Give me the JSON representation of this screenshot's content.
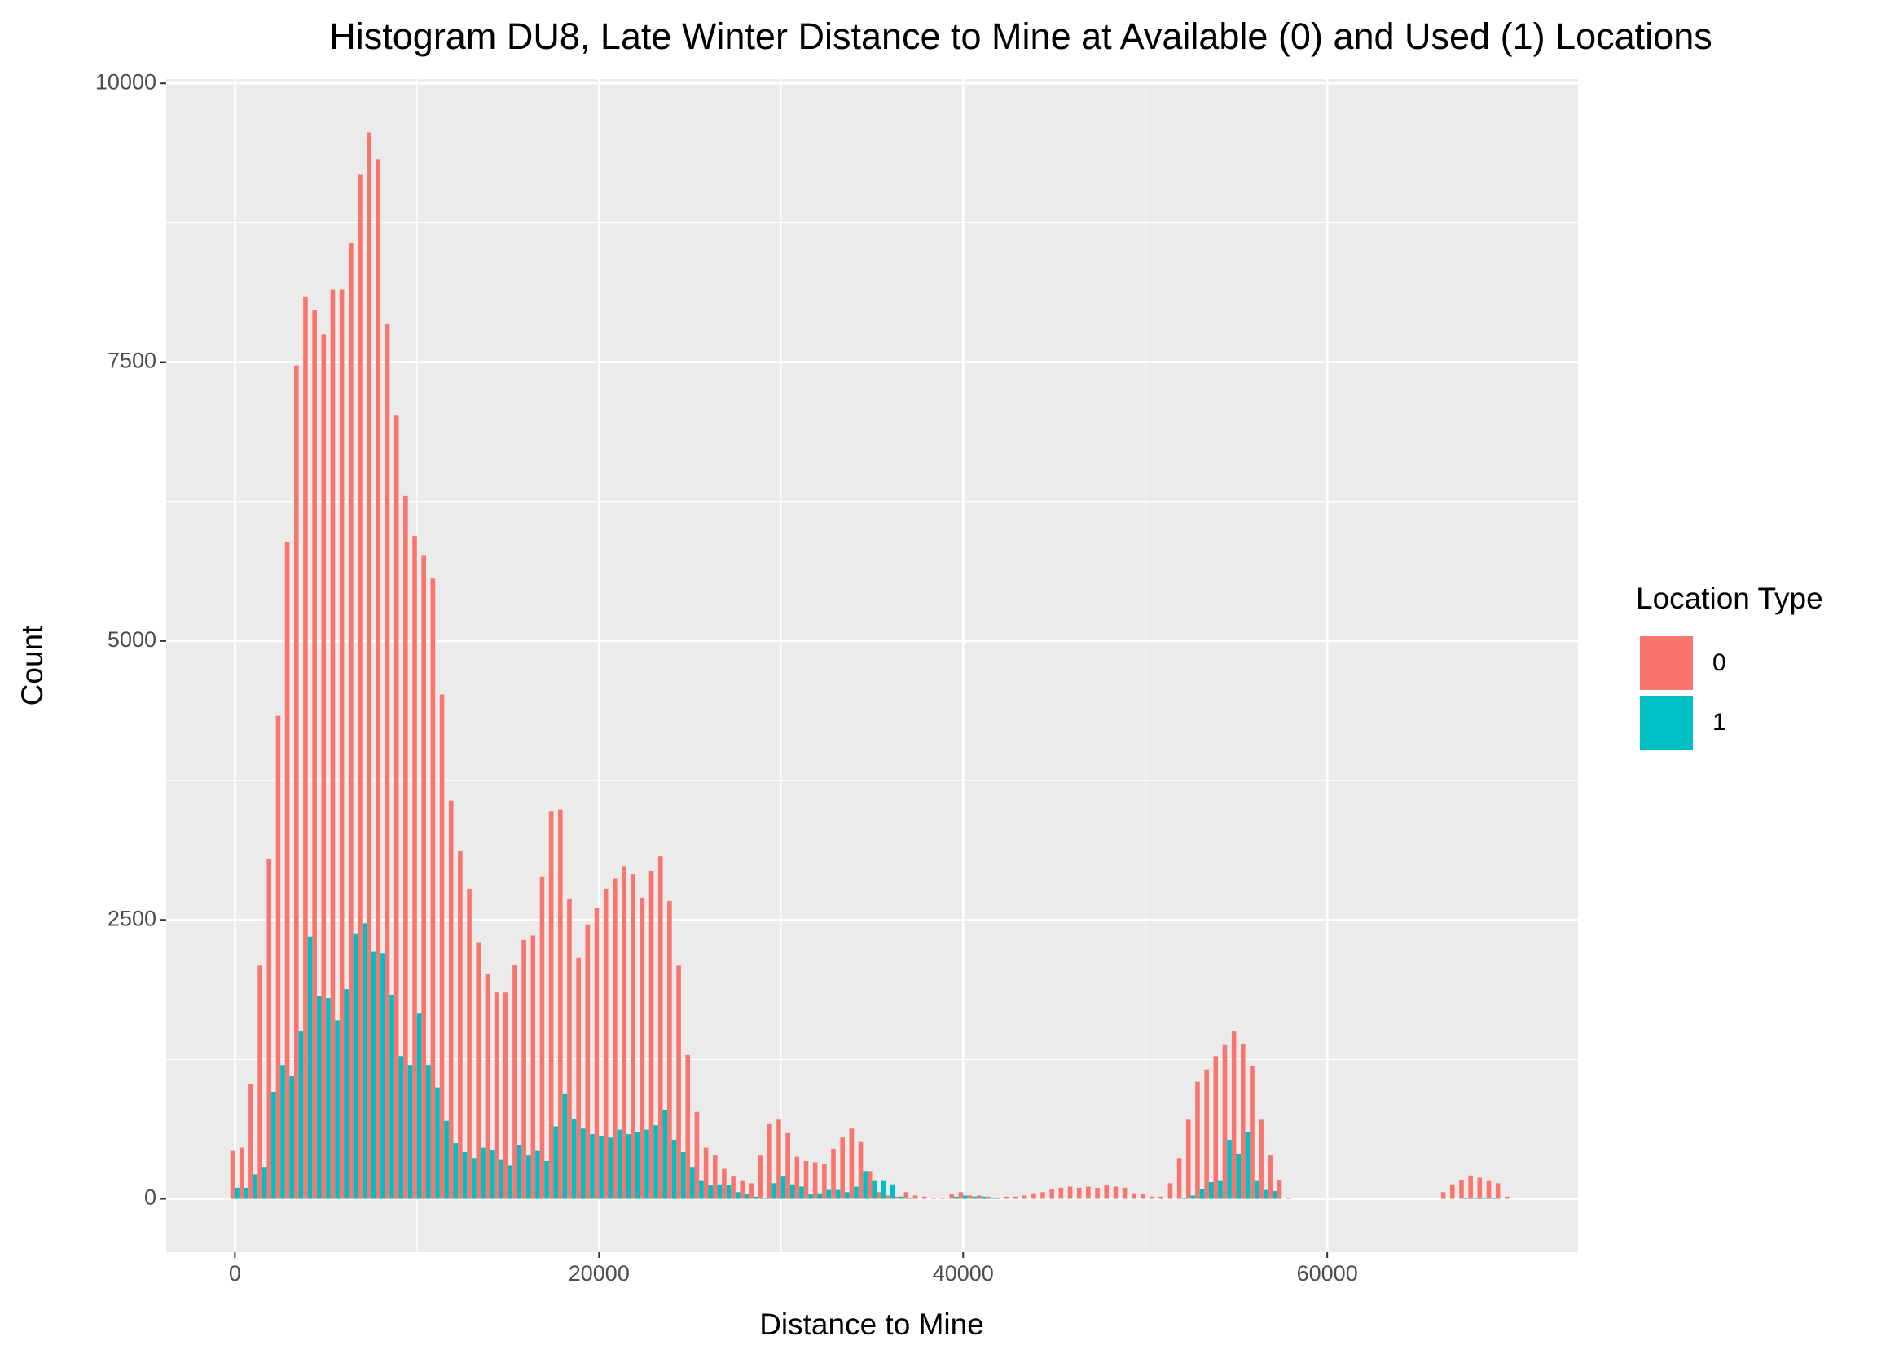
{
  "chart_data": {
    "type": "histogram",
    "title": "Histogram DU8, Late Winter Distance to Mine at Available (0) and Used (1) Locations",
    "x_label": "Distance to Mine",
    "y_label": "Count",
    "legend_title": "Location Type",
    "legend_position": "right",
    "grid": true,
    "panel_background": "#EBEBEB",
    "bins": [
      -250,
      250,
      750,
      1250,
      1750,
      2250,
      2750,
      3250,
      3750,
      4250,
      4750,
      5250,
      5750,
      6250,
      6750,
      7250,
      7750,
      8250,
      8750,
      9250,
      9750,
      10250,
      10750,
      11250,
      11750,
      12250,
      12750,
      13250,
      13750,
      14250,
      14750,
      15250,
      15750,
      16250,
      16750,
      17250,
      17750,
      18250,
      18750,
      19250,
      19750,
      20250,
      20750,
      21250,
      21750,
      22250,
      22750,
      23250,
      23750,
      24250,
      24750,
      25250,
      25750,
      26250,
      26750,
      27250,
      27750,
      28250,
      28750,
      29250,
      29750,
      30250,
      30750,
      31250,
      31750,
      32250,
      32750,
      33250,
      33750,
      34250,
      34750,
      35250,
      35750,
      36250,
      36750,
      37250,
      37750,
      38250,
      38750,
      39250,
      39750,
      40250,
      40750,
      41250,
      41750,
      42250,
      42750,
      43250,
      43750,
      44250,
      44750,
      45250,
      45750,
      46250,
      46750,
      47250,
      47750,
      48250,
      48750,
      49250,
      49750,
      50250,
      50750,
      51250,
      51750,
      52250,
      52750,
      53250,
      53750,
      54250,
      54750,
      55250,
      55750,
      56250,
      56750,
      57250,
      57750,
      58250,
      58750,
      59250,
      59750,
      60250,
      60750,
      61250,
      61750,
      62250,
      62750,
      63250,
      63750,
      64250,
      64750,
      65250,
      65750,
      66250,
      66750,
      67250,
      67750,
      68250,
      68750,
      69250,
      69750,
      70250
    ],
    "series": [
      {
        "name": "0",
        "color": "#F8766D",
        "values": [
          430,
          460,
          1030,
          2090,
          3050,
          4330,
          5890,
          7470,
          8090,
          7970,
          7750,
          8150,
          8150,
          8570,
          9180,
          9560,
          9320,
          7840,
          7020,
          6300,
          5940,
          5770,
          5560,
          4520,
          3570,
          3120,
          2780,
          2300,
          2020,
          1850,
          1850,
          2100,
          2320,
          2360,
          2890,
          3470,
          3490,
          2690,
          2160,
          2460,
          2610,
          2780,
          2870,
          2980,
          2910,
          2700,
          2940,
          3070,
          2670,
          2090,
          1290,
          780,
          460,
          390,
          270,
          200,
          160,
          140,
          390,
          670,
          710,
          590,
          380,
          340,
          330,
          310,
          450,
          550,
          630,
          510,
          250,
          60,
          30,
          20,
          60,
          30,
          20,
          10,
          10,
          40,
          60,
          30,
          30,
          20,
          10,
          20,
          20,
          30,
          50,
          60,
          90,
          100,
          110,
          100,
          110,
          100,
          120,
          110,
          100,
          50,
          40,
          20,
          20,
          140,
          360,
          710,
          1050,
          1160,
          1280,
          1380,
          1500,
          1390,
          1190,
          710,
          390,
          170,
          10,
          0,
          0,
          0,
          0,
          0,
          0,
          0,
          0,
          0,
          0,
          0,
          0,
          0,
          0,
          0,
          0,
          60,
          130,
          170,
          210,
          190,
          160,
          140,
          20
        ]
      },
      {
        "name": "1",
        "color": "#00BFC4",
        "values": [
          100,
          100,
          220,
          280,
          960,
          1200,
          1100,
          1500,
          2350,
          1820,
          1800,
          1600,
          1880,
          2380,
          2470,
          2220,
          2200,
          1830,
          1280,
          1200,
          1660,
          1200,
          1000,
          700,
          500,
          420,
          360,
          460,
          440,
          350,
          300,
          480,
          390,
          430,
          340,
          650,
          940,
          720,
          630,
          580,
          560,
          550,
          620,
          580,
          600,
          620,
          660,
          800,
          530,
          420,
          280,
          160,
          120,
          130,
          120,
          60,
          40,
          20,
          10,
          140,
          200,
          130,
          110,
          40,
          50,
          80,
          80,
          60,
          110,
          250,
          160,
          160,
          130,
          20,
          10,
          0,
          0,
          0,
          0,
          20,
          30,
          20,
          20,
          10,
          0,
          0,
          0,
          0,
          0,
          0,
          0,
          0,
          0,
          0,
          0,
          0,
          0,
          0,
          0,
          0,
          0,
          0,
          0,
          0,
          10,
          30,
          90,
          150,
          160,
          530,
          400,
          600,
          160,
          80,
          70,
          0,
          0,
          0,
          0,
          0,
          0,
          0,
          0,
          0,
          0,
          0,
          0,
          0,
          0,
          0,
          0,
          0,
          0,
          0,
          0,
          10,
          10,
          10,
          10,
          0,
          0
        ]
      }
    ],
    "xlim": [
      -3775,
      73775
    ],
    "xticks": [
      0,
      20000,
      40000,
      60000
    ],
    "ylim": [
      -478,
      10038
    ],
    "yticks": [
      0,
      2500,
      5000,
      7500,
      10000
    ]
  }
}
